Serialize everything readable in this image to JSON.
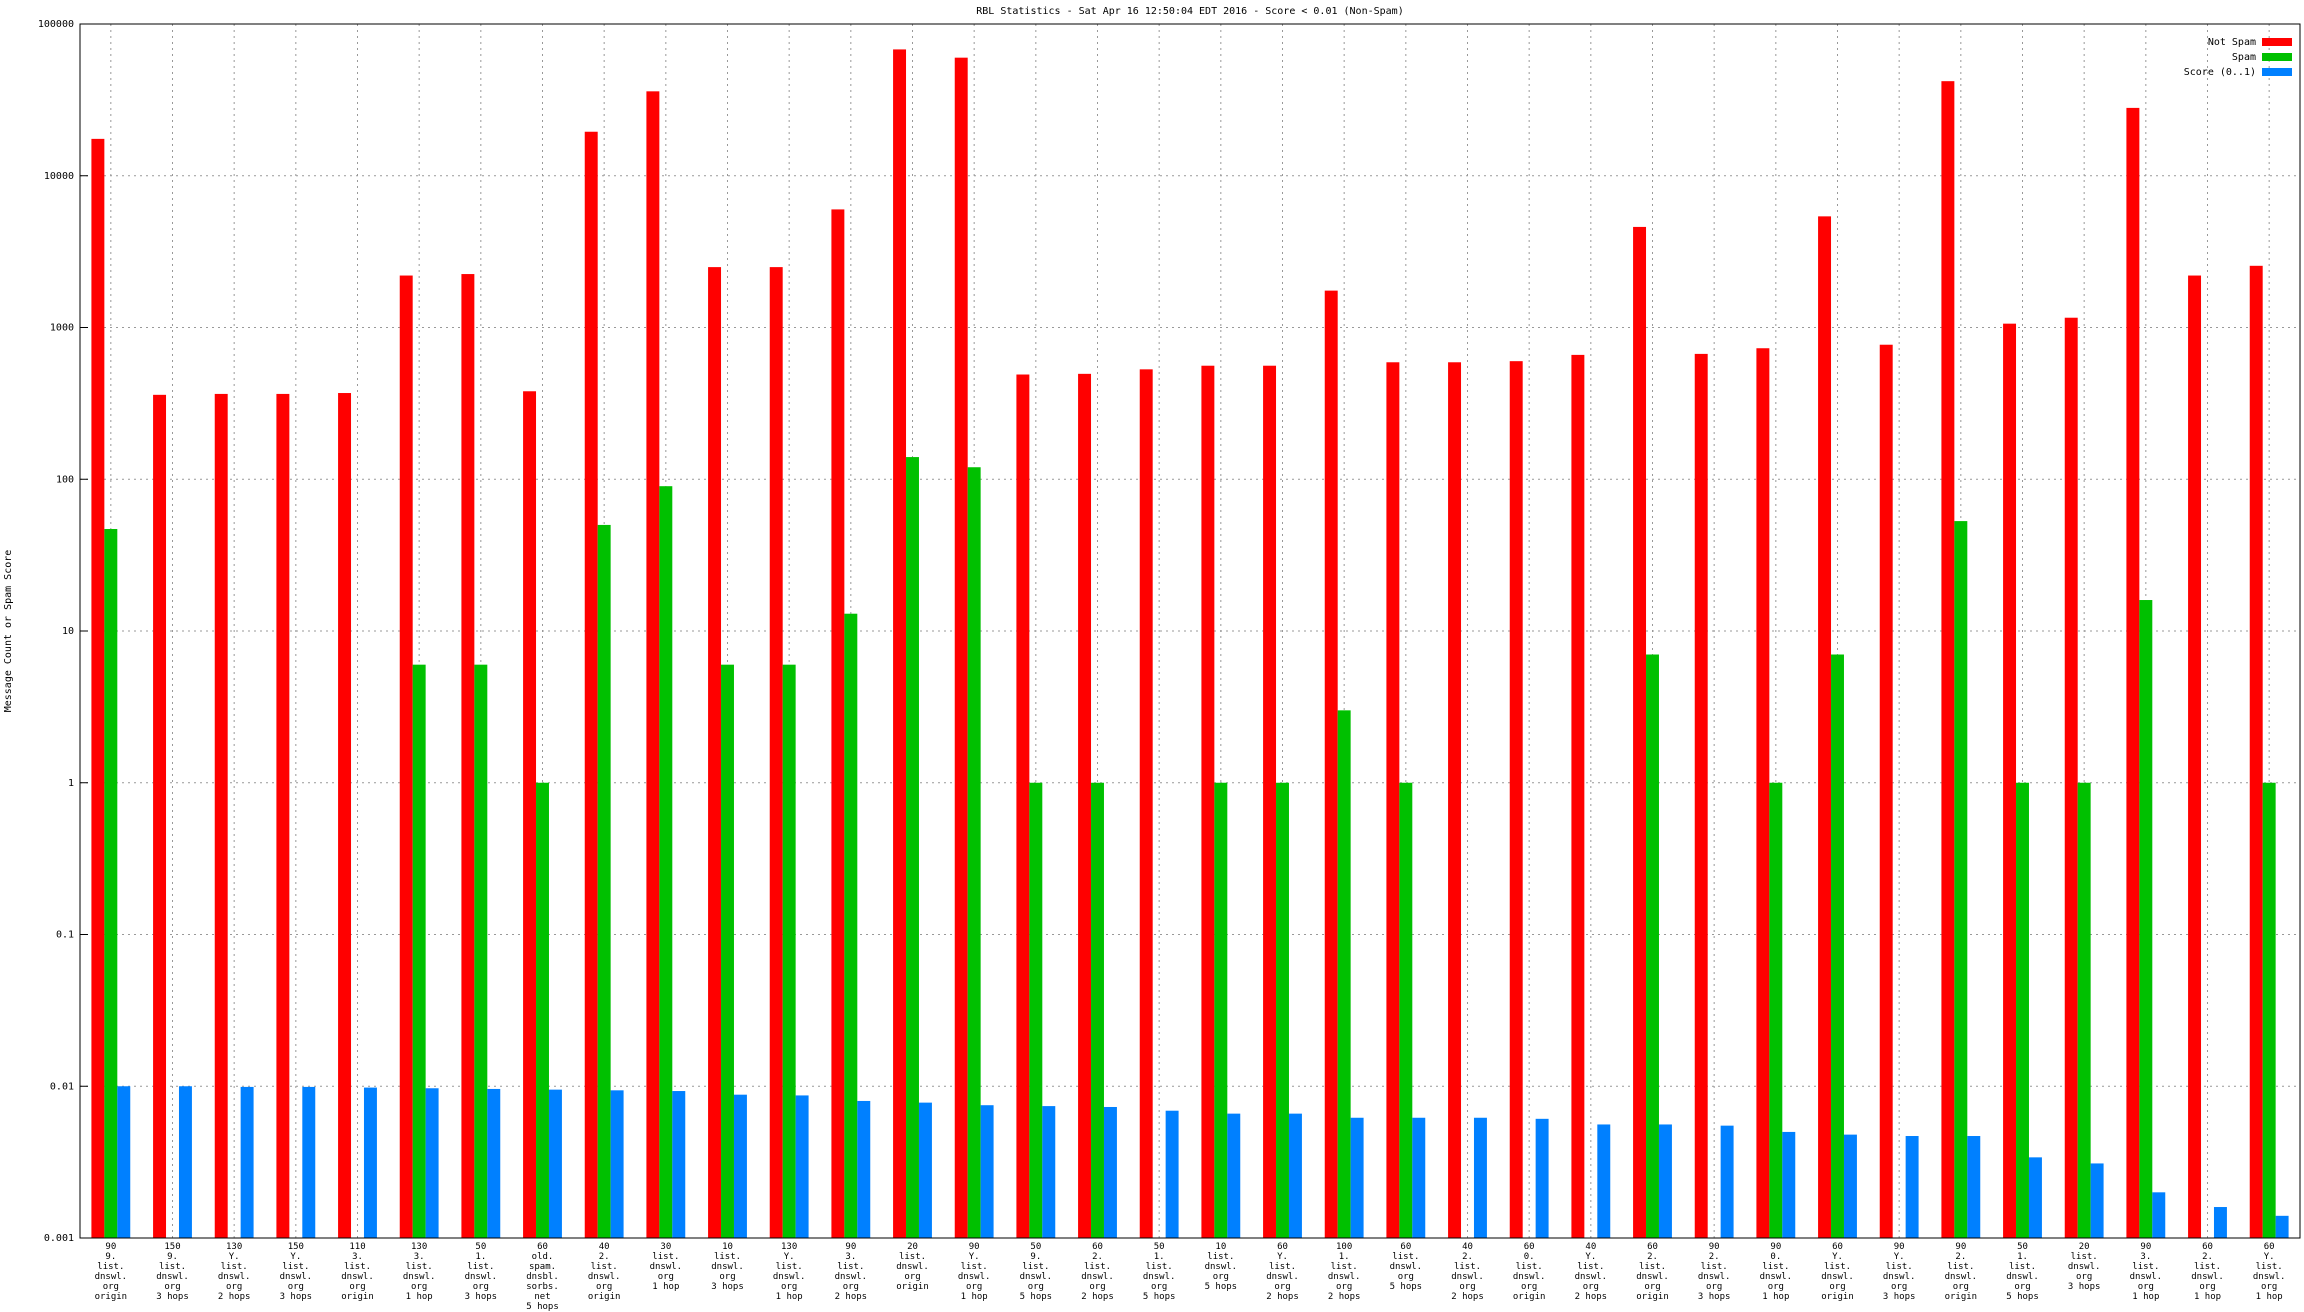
{
  "chart_data": {
    "type": "bar",
    "title": "RBL Statistics - Sat Apr 16 12:50:04 EDT 2016 - Score < 0.01 (Non-Spam)",
    "y_label": "Message Count or Spam Score",
    "log_y": true,
    "grid": true,
    "legend": "top-right",
    "ylim": [
      0.001,
      100000
    ],
    "yticks": [
      0.001,
      0.01,
      0.1,
      1,
      10,
      100,
      1000,
      10000,
      100000
    ],
    "categories": [
      "90\n9.\nlist.\ndnswl.\norg\norigin",
      "150\n9.\nlist.\ndnswl.\norg\n3 hops",
      "130\nY.\nlist.\ndnswl.\norg\n2 hops",
      "150\nY.\nlist.\ndnswl.\norg\n3 hops",
      "110\n3.\nlist.\ndnswl.\norg\norigin",
      "130\n3.\nlist.\ndnswl.\norg\n1 hop",
      "50\n1.\nlist.\ndnswl.\norg\n3 hops",
      "60\nold.\nspam.\ndnsbl.\nsorbs.\nnet\n5 hops",
      "40\n2.\nlist.\ndnswl.\norg\norigin",
      "30\nlist.\ndnswl.\norg\n1 hop",
      "10\nlist.\ndnswl.\norg\n3 hops",
      "130\nY.\nlist.\ndnswl.\norg\n1 hop",
      "90\n3.\nlist.\ndnswl.\norg\n2 hops",
      "20\nlist.\ndnswl.\norg\norigin",
      "90\nY.\nlist.\ndnswl.\norg\n1 hop",
      "50\n9.\nlist.\ndnswl.\norg\n5 hops",
      "60\n2.\nlist.\ndnswl.\norg\n2 hops",
      "50\n1.\nlist.\ndnswl.\norg\n5 hops",
      "10\nlist.\ndnswl.\norg\n5 hops",
      "60\nY.\nlist.\ndnswl.\norg\n2 hops",
      "100\n1.\nlist.\ndnswl.\norg\n2 hops",
      "60\nlist.\ndnswl.\norg\n5 hops",
      "40\n2.\nlist.\ndnswl.\norg\n2 hops",
      "60\n0.\nlist.\ndnswl.\norg\norigin",
      "40\nY.\nlist.\ndnswl.\norg\n2 hops",
      "60\n2.\nlist.\ndnswl.\norg\norigin",
      "90\n2.\nlist.\ndnswl.\norg\n3 hops",
      "90\n0.\nlist.\ndnswl.\norg\n1 hop",
      "60\nY.\nlist.\ndnswl.\norg\norigin",
      "90\nY.\nlist.\ndnswl.\norg\n3 hops",
      "90\n2.\nlist.\ndnswl.\norg\norigin",
      "50\n1.\nlist.\ndnswl.\norg\n5 hops",
      "20\nlist.\ndnswl.\norg\n3 hops",
      "90\n3.\nlist.\ndnswl.\norg\n1 hop",
      "60\n2.\nlist.\ndnswl.\norg\n1 hop",
      "60\nY.\nlist.\ndnswl.\norg\n1 hop"
    ],
    "series": [
      {
        "name": "Not Spam",
        "color": "#ff0000",
        "values": [
          17500,
          360,
          365,
          365,
          370,
          2200,
          2250,
          380,
          19500,
          36000,
          2500,
          2500,
          6000,
          68000,
          60000,
          490,
          495,
          530,
          560,
          560,
          1750,
          590,
          590,
          600,
          660,
          4600,
          670,
          730,
          5400,
          770,
          42000,
          1060,
          1160,
          28000,
          2200,
          2550
        ]
      },
      {
        "name": "Spam",
        "color": "#00c000",
        "values": [
          47,
          null,
          null,
          null,
          null,
          6,
          6,
          1,
          50,
          90,
          6,
          6,
          13,
          140,
          120,
          1,
          1,
          null,
          1,
          1,
          3,
          1,
          null,
          null,
          null,
          7,
          null,
          1,
          7,
          null,
          53,
          1,
          1,
          16,
          null,
          1
        ]
      },
      {
        "name": "Score (0..1)",
        "color": "#0080ff",
        "values": [
          0.01,
          0.01,
          0.0099,
          0.0099,
          0.0098,
          0.0097,
          0.0096,
          0.0095,
          0.0094,
          0.0093,
          0.0088,
          0.0087,
          0.008,
          0.0078,
          0.0075,
          0.0074,
          0.0073,
          0.0069,
          0.0066,
          0.0066,
          0.0062,
          0.0062,
          0.0062,
          0.0061,
          0.0056,
          0.0056,
          0.0055,
          0.005,
          0.0048,
          0.0047,
          0.0047,
          0.0034,
          0.0031,
          0.002,
          0.0016,
          0.0014
        ]
      }
    ]
  }
}
